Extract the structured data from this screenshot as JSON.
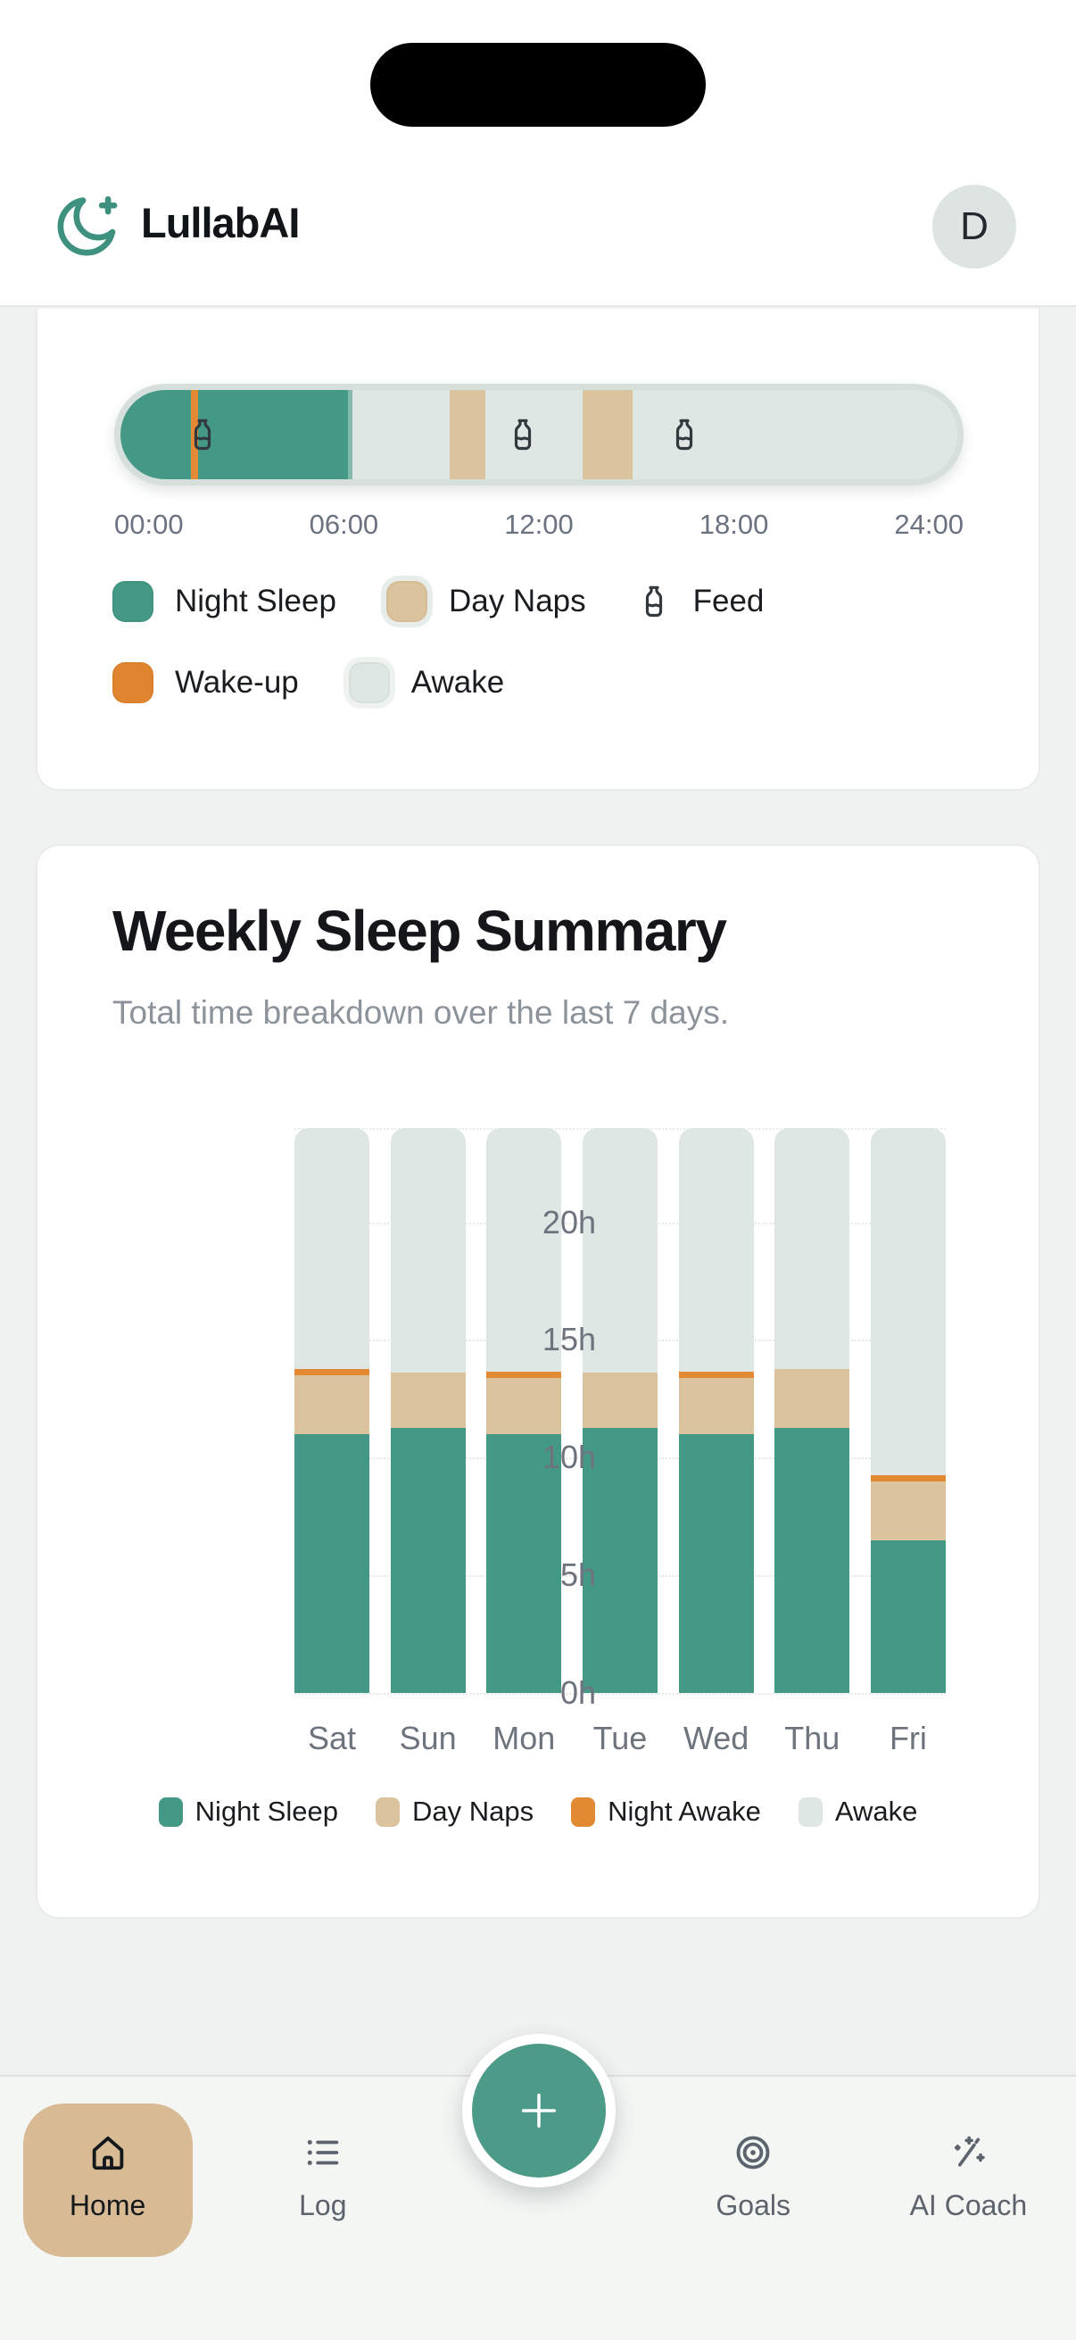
{
  "header": {
    "app_name": "LullabAI",
    "avatar_initial": "D"
  },
  "colors": {
    "night_sleep": "#449886",
    "day_naps": "#dbc39e",
    "wake_up": "#e28a33",
    "awake": "#dee7e3"
  },
  "timeline_card": {
    "axis_labels": [
      "00:00",
      "06:00",
      "12:00",
      "18:00",
      "24:00"
    ],
    "events": {
      "night_sleep_pct": [
        0,
        27.7
      ],
      "wake_up_marker_pct": 8.8,
      "naps_pct": [
        [
          39.3,
          43.6
        ],
        [
          55.2,
          61.2
        ]
      ],
      "feeds_pct": [
        9.8,
        48.1,
        67.4
      ]
    },
    "legend_row1": [
      {
        "label": "Night Sleep"
      },
      {
        "label": "Day Naps"
      },
      {
        "label": "Feed"
      }
    ],
    "legend_row2": [
      {
        "label": "Wake-up"
      },
      {
        "label": "Awake"
      }
    ]
  },
  "weekly_card": {
    "title": "Weekly Sleep Summary",
    "subtitle": "Total time breakdown over the last 7 days.",
    "chart_data": {
      "type": "bar",
      "stacked": true,
      "categories": [
        "Sat",
        "Sun",
        "Mon",
        "Tue",
        "Wed",
        "Thu",
        "Fri"
      ],
      "series": [
        {
          "name": "Night Sleep",
          "color_key": "night_sleep",
          "values": [
            11.0,
            11.25,
            11.0,
            11.25,
            11.0,
            11.25,
            6.5
          ]
        },
        {
          "name": "Day Naps",
          "color_key": "day_naps",
          "values": [
            2.5,
            2.35,
            2.4,
            2.35,
            2.4,
            2.5,
            2.5
          ]
        },
        {
          "name": "Night Awake",
          "color_key": "wake_up",
          "values": [
            0.25,
            0,
            0.25,
            0,
            0.25,
            0,
            0.25
          ]
        },
        {
          "name": "Awake",
          "color_key": "awake",
          "values": [
            10.25,
            10.4,
            10.35,
            10.4,
            10.35,
            10.25,
            14.75
          ]
        }
      ],
      "y_ticks": [
        "0h",
        "5h",
        "10h",
        "15h",
        "20h"
      ],
      "y_tick_values": [
        0,
        5,
        10,
        15,
        20
      ],
      "ylim": [
        0,
        24
      ],
      "unit": "h",
      "grid": true,
      "legend_position": "bottom"
    }
  },
  "nav": {
    "items": [
      {
        "label": "Home",
        "active": true
      },
      {
        "label": "Log",
        "active": false
      },
      {
        "label": "Goals",
        "active": false
      },
      {
        "label": "AI Coach",
        "active": false
      }
    ],
    "fab_label": "+"
  }
}
